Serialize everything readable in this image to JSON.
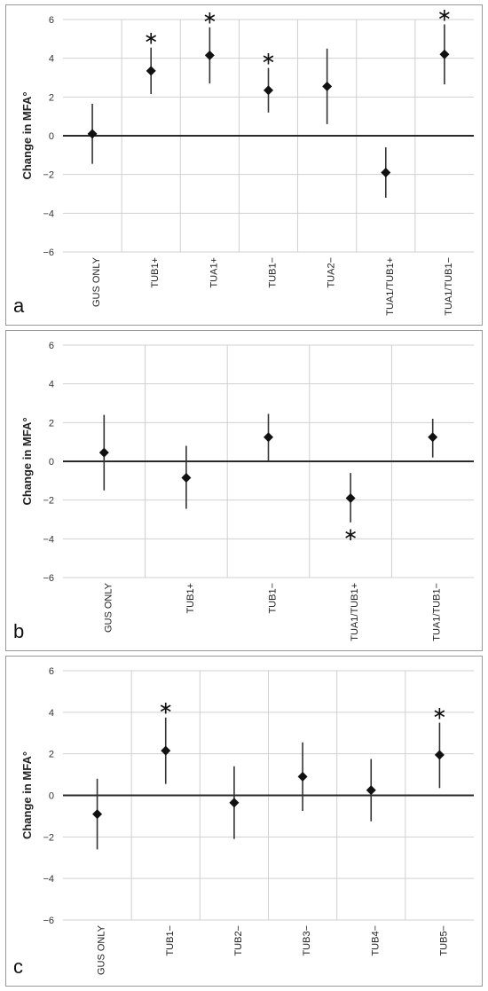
{
  "chart_data": [
    {
      "type": "scatter",
      "panel_label": "a",
      "ylabel": "Change in MFA°",
      "ylim": [
        -6,
        6
      ],
      "yticks": [
        "6",
        "4",
        "2",
        "0",
        "−2",
        "−4",
        "−6"
      ],
      "categories": [
        "GUS ONLY",
        "TUB1+",
        "TUA1+",
        "TUB1−",
        "TUA2−",
        "TUA1/TUB1+",
        "TUA1/TUB1−"
      ],
      "values": [
        0.1,
        3.35,
        4.15,
        2.35,
        2.55,
        -1.9,
        4.2
      ],
      "error_low": [
        -1.45,
        2.15,
        2.7,
        1.2,
        0.6,
        -3.2,
        2.65
      ],
      "error_high": [
        1.65,
        4.55,
        5.6,
        3.5,
        4.5,
        -0.6,
        5.75
      ],
      "significant": [
        false,
        true,
        true,
        true,
        false,
        false,
        true
      ],
      "marker": "∗",
      "grid": true
    },
    {
      "type": "scatter",
      "panel_label": "b",
      "ylabel": "Change in MFA°",
      "ylim": [
        -6,
        6
      ],
      "yticks": [
        "6",
        "4",
        "2",
        "0",
        "−2",
        "−4",
        "−6"
      ],
      "categories": [
        "GUS ONLY",
        "TUB1+",
        "TUB1−",
        "TUA1/TUB1+",
        "TUA1/TUB1−"
      ],
      "values": [
        0.45,
        -0.85,
        1.25,
        -1.9,
        1.25
      ],
      "error_low": [
        -1.5,
        -2.45,
        0.05,
        -3.15,
        0.2
      ],
      "error_high": [
        2.4,
        0.8,
        2.45,
        -0.6,
        2.2
      ],
      "significant": [
        false,
        false,
        false,
        true,
        false
      ],
      "marker": "∗",
      "grid": true
    },
    {
      "type": "scatter",
      "panel_label": "c",
      "ylabel": "Change in MFA°",
      "ylim": [
        -6,
        6
      ],
      "yticks": [
        "6",
        "4",
        "2",
        "0",
        "−2",
        "−4",
        "−6"
      ],
      "categories": [
        "GUS ONLY",
        "TUB1−",
        "TUB2−",
        "TUB3−",
        "TUB4−",
        "TUB5−"
      ],
      "values": [
        -0.9,
        2.15,
        -0.35,
        0.9,
        0.25,
        1.95
      ],
      "error_low": [
        -2.6,
        0.55,
        -2.1,
        -0.75,
        -1.25,
        0.35
      ],
      "error_high": [
        0.8,
        3.75,
        1.4,
        2.55,
        1.75,
        3.5
      ],
      "significant": [
        false,
        true,
        false,
        false,
        false,
        true
      ],
      "marker": "∗",
      "grid": true
    }
  ]
}
